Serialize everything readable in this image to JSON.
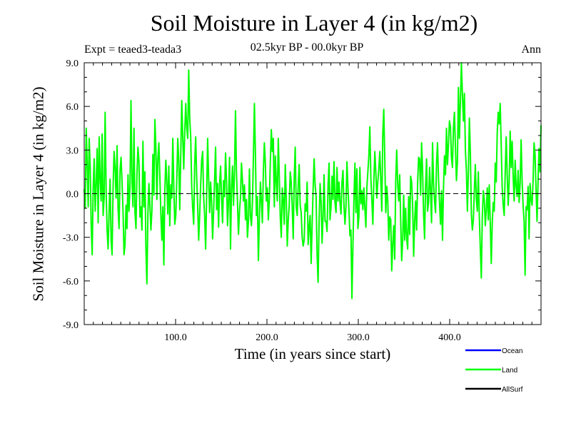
{
  "chart_data": {
    "type": "line",
    "title": "Soil Moisture in Layer 4 (in kg/m2)",
    "subtitle": "02.5kyr BP - 00.0kyr BP",
    "experiment": "Expt = teaed3-teada3",
    "season": "Ann",
    "xlabel": "Time (in years since start)",
    "ylabel": "Soil Moisture in Layer 4 (in kg/m2)",
    "xlim": [
      0,
      500
    ],
    "ylim": [
      -9.0,
      9.0
    ],
    "xticks": [
      100,
      200,
      300,
      400
    ],
    "xtick_labels": [
      "100.0",
      "200.0",
      "300.0",
      "400.0"
    ],
    "yticks": [
      -9,
      -6,
      -3,
      0,
      3,
      6,
      9
    ],
    "ytick_labels": [
      "-9.0",
      "-6.0",
      "-3.0",
      "0.0",
      "3.0",
      "6.0",
      "9.0"
    ],
    "zero_line": "dashed",
    "legend_position": "bottom-right",
    "series": [
      {
        "name": "Ocean",
        "color": "#0000ff",
        "values": []
      },
      {
        "name": "Land",
        "color": "#00ff00",
        "values": [
          0.3,
          -1.0,
          4.5,
          2.1,
          -0.9,
          3.8,
          1.9,
          -2.1,
          -4.2,
          0.4,
          2.4,
          -1.2,
          0.7,
          3.1,
          -2.0,
          3.9,
          1.0,
          -0.5,
          4.1,
          -1.5,
          -0.3,
          5.6,
          0.2,
          -2.5,
          -3.8,
          -1.2,
          1.0,
          -3.2,
          -4.2,
          0.4,
          2.9,
          1.8,
          -0.3,
          3.3,
          -1.0,
          -2.4,
          1.6,
          2.5,
          0.8,
          -1.2,
          -4.2,
          -3.5,
          -0.8,
          -2.4,
          1.3,
          -1.2,
          0.5,
          6.4,
          0.9,
          -0.9,
          4.5,
          -1.3,
          -2.4,
          1.4,
          3.2,
          2.2,
          -1.6,
          -0.9,
          -2.5,
          3.6,
          -0.9,
          1.5,
          -3.8,
          -6.2,
          -1.3,
          0.7,
          -0.8,
          -2.5,
          -1.2,
          2.7,
          -0.1,
          5.1,
          3.2,
          -0.4,
          2.4,
          3.5,
          1.2,
          -1.4,
          -3.2,
          -0.9,
          -4.9,
          0.2,
          2.3,
          0.8,
          -1.4,
          1.9,
          -2.2,
          0.6,
          -0.3,
          3.8,
          0.5,
          -2.1,
          -1.5,
          0.9,
          3.8,
          2.2,
          -1.1,
          2.7,
          6.4,
          3.9,
          1.7,
          4.2,
          6.2,
          4.5,
          3.8,
          8.5,
          5.2,
          3.9,
          0.5,
          -1.0,
          -2.1,
          2.0,
          3.9,
          1.1,
          -0.8,
          -3.2,
          -1.5,
          0.6,
          2.3,
          2.9,
          -0.2,
          -1.5,
          -3.8,
          -0.2,
          3.8,
          1.1,
          -1.3,
          0.8,
          -0.6,
          -3.1,
          -1.2,
          0.9,
          3.2,
          -1.1,
          0.7,
          -2.3,
          0.6,
          1.9,
          -0.3,
          -2.0,
          0.9,
          -0.2,
          2.8,
          0.9,
          -2.2,
          -0.5,
          2.5,
          -3.8,
          0.4,
          1.9,
          -0.8,
          1.5,
          5.7,
          1.4,
          -0.6,
          -2.8,
          -1.2,
          -0.3,
          2.1,
          0.9,
          -0.5,
          0.6,
          -1.8,
          -0.4,
          -3.0,
          -1.9,
          1.7,
          -1.5,
          -2.2,
          -0.7,
          2.5,
          6.2,
          2.8,
          -1.5,
          -0.2,
          -4.6,
          -1.8,
          0.8,
          -0.5,
          -2.0,
          1.5,
          3.5,
          2.1,
          -0.5,
          0.4,
          -1.8,
          -0.4,
          2.2,
          4.4,
          2.9,
          3.8,
          -0.9,
          2.6,
          0.8,
          -0.5,
          3.8,
          1.2,
          -1.6,
          -3.0,
          0.4,
          -0.4,
          -2.1,
          2.0,
          -0.2,
          -3.6,
          -1.8,
          -0.8,
          1.5,
          0.8,
          -0.9,
          -3.1,
          1.0,
          3.2,
          -0.9,
          -1.5,
          0.5,
          2.0,
          -0.8,
          -1.3,
          -3.0,
          -3.6,
          -3.2,
          -0.7,
          -1.2,
          0.8,
          -3.5,
          -2.3,
          -1.5,
          -4.8,
          -2.2,
          0.3,
          2.4,
          0.6,
          -0.2,
          -4.2,
          -6.1,
          -1.9,
          0.7,
          -0.5,
          -3.4,
          -1.5,
          1.3,
          -1.9,
          -1.9,
          -2.6,
          0.5,
          2.1,
          -1.8,
          -0.9,
          1.2,
          -0.4,
          2.2,
          -0.6,
          -1.3,
          1.8,
          -0.5,
          0.8,
          -0.6,
          -1.4,
          0.8,
          1.6,
          -0.8,
          -2.1,
          -0.9,
          2.2,
          0.4,
          -1.1,
          -2.9,
          -2.5,
          -7.2,
          -3.6,
          -0.4,
          2.1,
          -1.3,
          1.7,
          -2.4,
          -1.6,
          1.8,
          -0.7,
          0.2,
          -1.1,
          0.4,
          -1.0,
          -2.3,
          0.4,
          1.5,
          2.6,
          4.6,
          1.1,
          -0.4,
          -2.1,
          0.8,
          2.9,
          1.5,
          -0.3,
          0.8,
          1.7,
          2.9,
          0.9,
          -1.2,
          4.1,
          5.8,
          2.4,
          -1.3,
          0.5,
          -0.5,
          -3.2,
          -1.6,
          -1.8,
          -5.3,
          -3.5,
          -2.2,
          -4.5,
          0.9,
          3.0,
          0.6,
          -0.5,
          1.3,
          -1.9,
          -4.6,
          -3.2,
          -0.1,
          -3.2,
          -1.0,
          -3.1,
          -3.8,
          -0.2,
          -2.8,
          1.2,
          0.8,
          -0.8,
          -4.3,
          -1.9,
          -0.5,
          -2.5,
          0.7,
          2.5,
          2.4,
          -0.1,
          3.5,
          1.6,
          -1.4,
          -3.1,
          0.5,
          2.4,
          -1.2,
          -0.6,
          1.8,
          0.2,
          -2.0,
          3.5,
          0.8,
          -0.5,
          -1.3,
          2.1,
          3.5,
          1.0,
          -0.6,
          -2.1,
          0.2,
          -3.2,
          0.4,
          2.6,
          1.3,
          4.5,
          2.0,
          3.4,
          5.0,
          4.6,
          2.5,
          1.8,
          4.5,
          5.6,
          3.2,
          0.9,
          2.2,
          7.3,
          3.8,
          6.4,
          9.0,
          6.8,
          5.0,
          6.9,
          3.0,
          1.6,
          -1.2,
          1.5,
          5.2,
          2.8,
          -1.4,
          -2.5,
          -1.8,
          0.2,
          2.0,
          -0.4,
          -1.2,
          1.5,
          -1.6,
          -3.8,
          -5.8,
          -1.6,
          0.2,
          -0.4,
          -2.2,
          -1.1,
          0.4,
          -1.8,
          0.6,
          -2.0,
          -4.8,
          -2.0,
          -0.6,
          -1.2,
          2.1,
          0.8,
          4.2,
          5.6,
          4.8,
          6.2,
          3.3,
          0.4,
          -0.8,
          -1.5,
          1.4,
          3.9,
          1.3,
          -0.8,
          0.9,
          4.3,
          1.8,
          3.6,
          1.2,
          -0.5,
          2.3,
          0.5,
          -0.2,
          1.6,
          -0.6,
          0.7,
          3.7,
          0.9,
          -0.8,
          -1.9,
          -5.6,
          -0.9,
          -1.1,
          0.5,
          -3.1,
          0.7,
          -0.4,
          -0.8,
          0.8,
          3.5,
          2.7,
          0.3,
          -1.9,
          0.8,
          3.1,
          1.5,
          4.7
        ]
      },
      {
        "name": "AllSurf",
        "color": "#000000",
        "values": []
      }
    ]
  }
}
